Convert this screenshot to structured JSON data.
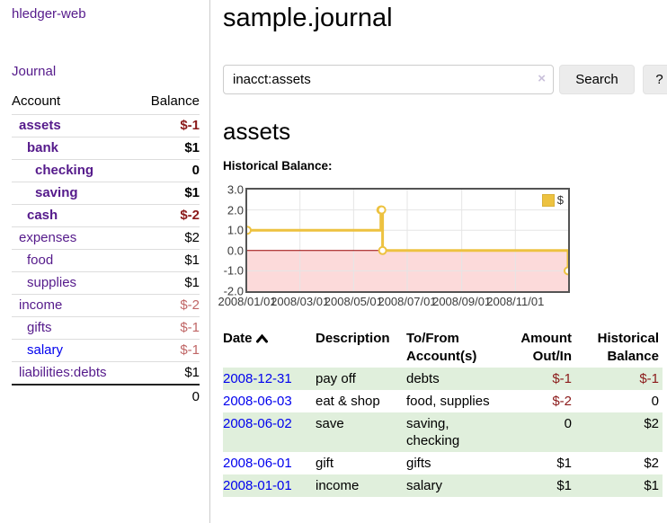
{
  "sidebar": {
    "app_title": "hledger-web",
    "journal_link": "Journal",
    "accounts": {
      "header_account": "Account",
      "header_balance": "Balance",
      "rows": [
        {
          "name": "assets",
          "balance": "$-1"
        },
        {
          "name": "bank",
          "balance": "$1"
        },
        {
          "name": "checking",
          "balance": "0"
        },
        {
          "name": "saving",
          "balance": "$1"
        },
        {
          "name": "cash",
          "balance": "$-2"
        },
        {
          "name": "expenses",
          "balance": "$2"
        },
        {
          "name": "food",
          "balance": "$1"
        },
        {
          "name": "supplies",
          "balance": "$1"
        },
        {
          "name": "income",
          "balance": "$-2"
        },
        {
          "name": "gifts",
          "balance": "$-1"
        },
        {
          "name": "salary",
          "balance": "$-1"
        },
        {
          "name": "liabilities:debts",
          "balance": "$1"
        }
      ],
      "total": "0"
    }
  },
  "header": {
    "title": "sample.journal",
    "search": {
      "value": "inacct:assets",
      "clear_icon": "×",
      "search_button": "Search",
      "help_button": "?"
    }
  },
  "account_page": {
    "heading": "assets",
    "chart_title": "Historical Balance:"
  },
  "chart_data": {
    "type": "line",
    "title": "Historical Balance:",
    "legend": [
      {
        "label": "$",
        "color": "#edc240"
      }
    ],
    "legend_position": "top-right",
    "grid": true,
    "ylim": [
      -2,
      3
    ],
    "y_ticks": [
      {
        "value": 3,
        "label": "3.0"
      },
      {
        "value": 2,
        "label": "2.0"
      },
      {
        "value": 1,
        "label": "1.0"
      },
      {
        "value": 0,
        "label": "0.0"
      },
      {
        "value": -1,
        "label": "-1.0"
      },
      {
        "value": -2,
        "label": "-2.0"
      }
    ],
    "x_range": [
      "2008-01-01",
      "2008-12-31"
    ],
    "x_ticks": [
      {
        "date": "2008-01-01",
        "label": "2008/01/01"
      },
      {
        "date": "2008-03-01",
        "label": "2008/03/01"
      },
      {
        "date": "2008-05-01",
        "label": "2008/05/01"
      },
      {
        "date": "2008-07-01",
        "label": "2008/07/01"
      },
      {
        "date": "2008-09-01",
        "label": "2008/09/01"
      },
      {
        "date": "2008-11-01",
        "label": "2008/11/01"
      }
    ],
    "series": [
      {
        "name": "$",
        "color": "#edc240",
        "step": true,
        "points": [
          [
            "2008-01-01",
            1
          ],
          [
            "2008-06-01",
            2
          ],
          [
            "2008-06-02",
            2
          ],
          [
            "2008-06-03",
            0
          ],
          [
            "2008-12-31",
            -1
          ]
        ]
      }
    ],
    "negative_region_color": "#fcdada",
    "zero_line_color": "#990000"
  },
  "register": {
    "headers": {
      "date": "Date",
      "sort_icon": "sort-ascending",
      "description": "Description",
      "to_from": "To/From Account(s)",
      "amount": "Amount Out/In",
      "balance": "Historical Balance"
    },
    "rows": [
      {
        "date": "2008-12-31",
        "description": "pay off",
        "to_from": "debts",
        "amount": "$-1",
        "balance": "$-1"
      },
      {
        "date": "2008-06-03",
        "description": "eat & shop",
        "to_from": "food, supplies",
        "amount": "$-2",
        "balance": "0"
      },
      {
        "date": "2008-06-02",
        "description": "save",
        "to_from": "saving, checking",
        "amount": "0",
        "balance": "$2"
      },
      {
        "date": "2008-06-01",
        "description": "gift",
        "to_from": "gifts",
        "amount": "$1",
        "balance": "$2"
      },
      {
        "date": "2008-01-01",
        "description": "income",
        "to_from": "salary",
        "amount": "$1",
        "balance": "$1"
      }
    ]
  }
}
